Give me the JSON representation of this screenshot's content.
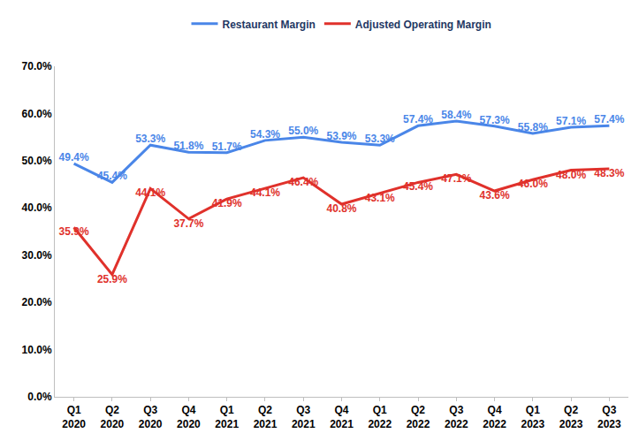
{
  "chart_data": {
    "type": "line",
    "categories": [
      "Q1 2020",
      "Q2 2020",
      "Q3 2020",
      "Q4 2020",
      "Q1 2021",
      "Q2 2021",
      "Q3 2021",
      "Q4 2021",
      "Q1 2022",
      "Q2 2022",
      "Q3 2022",
      "Q4 2022",
      "Q1 2023",
      "Q2 2023",
      "Q3 2023"
    ],
    "series": [
      {
        "name": "Restaurant Margin",
        "color": "#4a86e8",
        "values": [
          49.4,
          45.4,
          53.3,
          51.8,
          51.7,
          54.3,
          55.0,
          53.9,
          53.3,
          57.4,
          58.4,
          57.3,
          55.8,
          57.1,
          57.4
        ],
        "value_labels": [
          "49.4%",
          "45.4%",
          "53.3%",
          "51.8%",
          "51.7%",
          "54.3%",
          "55.0%",
          "53.9%",
          "53.3%",
          "57.4%",
          "58.4%",
          "57.3%",
          "55.8%",
          "57.1%",
          "57.4%"
        ]
      },
      {
        "name": "Adjusted Operating Margin",
        "color": "#e0312b",
        "values": [
          35.9,
          25.9,
          44.1,
          37.7,
          41.9,
          44.1,
          46.4,
          40.8,
          43.1,
          45.4,
          47.1,
          43.6,
          46.0,
          48.0,
          48.3
        ],
        "value_labels": [
          "35.9%",
          "25.9%",
          "44.1%",
          "37.7%",
          "41.9%",
          "44.1%",
          "46.4%",
          "40.8%",
          "43.1%",
          "45.4%",
          "47.1%",
          "43.6%",
          "46.0%",
          "48.0%",
          "48.3%"
        ]
      }
    ],
    "ylim": [
      0,
      70
    ],
    "yticks": [
      {
        "value": 0,
        "label": "0.0%"
      },
      {
        "value": 10,
        "label": "10.0%"
      },
      {
        "value": 20,
        "label": "20.0%"
      },
      {
        "value": 30,
        "label": "30.0%"
      },
      {
        "value": 40,
        "label": "40.0%"
      },
      {
        "value": 50,
        "label": "50.0%"
      },
      {
        "value": 60,
        "label": "60.0%"
      },
      {
        "value": 70,
        "label": "70.0%"
      }
    ],
    "grid": false,
    "legend": "top",
    "data_labels": true
  }
}
